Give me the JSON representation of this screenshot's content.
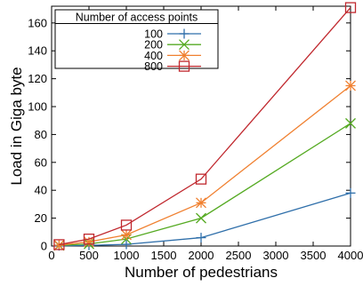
{
  "chart_data": {
    "type": "line",
    "xlabel": "Number of pedestrians",
    "ylabel": "Load in Giga byte",
    "xlim": [
      0,
      4000
    ],
    "ylim": [
      0,
      172
    ],
    "xticks": [
      0,
      500,
      1000,
      1500,
      2000,
      2500,
      3000,
      3500,
      4000
    ],
    "yticks": [
      0,
      20,
      40,
      60,
      80,
      100,
      120,
      140,
      160
    ],
    "x": [
      100,
      500,
      1000,
      2000,
      4000
    ],
    "legend_title": "Number of access points",
    "legend_position": "top-left",
    "grid": false,
    "series": [
      {
        "name": "100",
        "color": "#2f6faa",
        "marker": "plus",
        "values": [
          0.2,
          0.5,
          1.2,
          6,
          38
        ]
      },
      {
        "name": "200",
        "color": "#55aa22",
        "marker": "x",
        "values": [
          0.4,
          1.5,
          5,
          20,
          88
        ]
      },
      {
        "name": "400",
        "color": "#f08030",
        "marker": "star",
        "values": [
          0.6,
          3,
          8,
          31,
          115
        ]
      },
      {
        "name": "800",
        "color": "#c0282e",
        "marker": "square",
        "values": [
          1,
          5,
          15,
          48,
          171
        ]
      }
    ]
  }
}
